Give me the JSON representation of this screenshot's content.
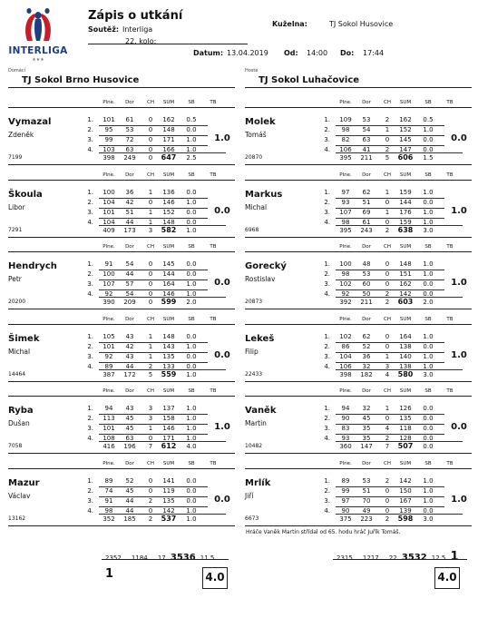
{
  "header": {
    "title": "Zápis o utkání",
    "soutez_label": "Soutěž:",
    "soutez_value": "Interliga",
    "kolo": "22. kolo:",
    "kuzelna_label": "Kuželna:",
    "kuzelna_value": "TJ Sokol Husovice",
    "datum_label": "Datum:",
    "datum_value": "13.04.2019",
    "od_label": "Od:",
    "od_value": "14:00",
    "do_label": "Do:",
    "do_value": "17:44",
    "logo_text": "INTERLIGA"
  },
  "home": {
    "label": "Domácí",
    "name": "TJ Sokol Brno Husovice"
  },
  "away": {
    "label": "Hosté",
    "name": "TJ Sokol Luhačovice"
  },
  "columns": [
    "Plne.",
    "Dor",
    "CH",
    "SUM",
    "SB",
    "TB"
  ],
  "home_players": [
    {
      "last": "Vymazal",
      "first": "Zdeněk",
      "id": "7199",
      "rows": [
        [
          "101",
          "61",
          "0",
          "162",
          "0.5"
        ],
        [
          "95",
          "53",
          "0",
          "148",
          "0.0"
        ],
        [
          "99",
          "72",
          "0",
          "171",
          "1.0"
        ],
        [
          "103",
          "63",
          "0",
          "166",
          "1.0"
        ]
      ],
      "total": [
        "398",
        "249",
        "0",
        "647",
        "2.5"
      ],
      "points": "1.0"
    },
    {
      "last": "Škoula",
      "first": "Libor",
      "id": "7291",
      "rows": [
        [
          "100",
          "36",
          "1",
          "136",
          "0.0"
        ],
        [
          "104",
          "42",
          "0",
          "146",
          "1.0"
        ],
        [
          "101",
          "51",
          "1",
          "152",
          "0.0"
        ],
        [
          "104",
          "44",
          "1",
          "148",
          "0.0"
        ]
      ],
      "total": [
        "409",
        "173",
        "3",
        "582",
        "1.0"
      ],
      "points": "0.0"
    },
    {
      "last": "Hendrych",
      "first": "Petr",
      "id": "20200",
      "rows": [
        [
          "91",
          "54",
          "0",
          "145",
          "0.0"
        ],
        [
          "100",
          "44",
          "0",
          "144",
          "0.0"
        ],
        [
          "107",
          "57",
          "0",
          "164",
          "1.0"
        ],
        [
          "92",
          "54",
          "0",
          "146",
          "1.0"
        ]
      ],
      "total": [
        "390",
        "209",
        "0",
        "599",
        "2.0"
      ],
      "points": "0.0"
    },
    {
      "last": "Šimek",
      "first": "Michal",
      "id": "14464",
      "rows": [
        [
          "105",
          "43",
          "1",
          "148",
          "0.0"
        ],
        [
          "101",
          "42",
          "1",
          "143",
          "1.0"
        ],
        [
          "92",
          "43",
          "1",
          "135",
          "0.0"
        ],
        [
          "89",
          "44",
          "2",
          "133",
          "0.0"
        ]
      ],
      "total": [
        "387",
        "172",
        "5",
        "559",
        "1.0"
      ],
      "points": "0.0"
    },
    {
      "last": "Ryba",
      "first": "Dušan",
      "id": "7058",
      "rows": [
        [
          "94",
          "43",
          "3",
          "137",
          "1.0"
        ],
        [
          "113",
          "45",
          "3",
          "158",
          "1.0"
        ],
        [
          "101",
          "45",
          "1",
          "146",
          "1.0"
        ],
        [
          "108",
          "63",
          "0",
          "171",
          "1.0"
        ]
      ],
      "total": [
        "416",
        "196",
        "7",
        "612",
        "4.0"
      ],
      "points": "1.0"
    },
    {
      "last": "Mazur",
      "first": "Václav",
      "id": "13162",
      "rows": [
        [
          "89",
          "52",
          "0",
          "141",
          "0.0"
        ],
        [
          "74",
          "45",
          "0",
          "119",
          "0.0"
        ],
        [
          "91",
          "44",
          "2",
          "135",
          "0.0"
        ],
        [
          "98",
          "44",
          "0",
          "142",
          "1.0"
        ]
      ],
      "total": [
        "352",
        "185",
        "2",
        "537",
        "1.0"
      ],
      "points": "0.0"
    }
  ],
  "away_players": [
    {
      "last": "Molek",
      "first": "Tomáš",
      "id": "20870",
      "rows": [
        [
          "109",
          "53",
          "2",
          "162",
          "0.5"
        ],
        [
          "98",
          "54",
          "1",
          "152",
          "1.0"
        ],
        [
          "82",
          "63",
          "0",
          "145",
          "0.0"
        ],
        [
          "106",
          "41",
          "2",
          "147",
          "0.0"
        ]
      ],
      "total": [
        "395",
        "211",
        "5",
        "606",
        "1.5"
      ],
      "points": "0.0"
    },
    {
      "last": "Markus",
      "first": "Michal",
      "id": "6968",
      "rows": [
        [
          "97",
          "62",
          "1",
          "159",
          "1.0"
        ],
        [
          "93",
          "51",
          "0",
          "144",
          "0.0"
        ],
        [
          "107",
          "69",
          "1",
          "176",
          "1.0"
        ],
        [
          "98",
          "61",
          "0",
          "159",
          "1.0"
        ]
      ],
      "total": [
        "395",
        "243",
        "2",
        "638",
        "3.0"
      ],
      "points": "1.0"
    },
    {
      "last": "Gorecký",
      "first": "Rostislav",
      "id": "20873",
      "rows": [
        [
          "100",
          "48",
          "0",
          "148",
          "1.0"
        ],
        [
          "98",
          "53",
          "0",
          "151",
          "1.0"
        ],
        [
          "102",
          "60",
          "0",
          "162",
          "0.0"
        ],
        [
          "92",
          "50",
          "2",
          "142",
          "0.0"
        ]
      ],
      "total": [
        "392",
        "211",
        "2",
        "603",
        "2.0"
      ],
      "points": "1.0"
    },
    {
      "last": "Lekeš",
      "first": "Filip",
      "id": "22433",
      "rows": [
        [
          "102",
          "62",
          "0",
          "164",
          "1.0"
        ],
        [
          "86",
          "52",
          "0",
          "138",
          "0.0"
        ],
        [
          "104",
          "36",
          "1",
          "140",
          "1.0"
        ],
        [
          "106",
          "32",
          "3",
          "138",
          "1.0"
        ]
      ],
      "total": [
        "398",
        "182",
        "4",
        "580",
        "3.0"
      ],
      "points": "1.0"
    },
    {
      "last": "Vaněk",
      "first": "Martin",
      "id": "10482",
      "rows": [
        [
          "94",
          "32",
          "1",
          "126",
          "0.0"
        ],
        [
          "90",
          "45",
          "0",
          "135",
          "0.0"
        ],
        [
          "83",
          "35",
          "4",
          "118",
          "0.0"
        ],
        [
          "93",
          "35",
          "2",
          "128",
          "0.0"
        ]
      ],
      "total": [
        "360",
        "147",
        "7",
        "507",
        "0.0"
      ],
      "points": "0.0"
    },
    {
      "last": "Mrlík",
      "first": "Jiří",
      "id": "6673",
      "rows": [
        [
          "89",
          "53",
          "2",
          "142",
          "1.0"
        ],
        [
          "99",
          "51",
          "0",
          "150",
          "1.0"
        ],
        [
          "97",
          "70",
          "0",
          "167",
          "1.0"
        ],
        [
          "90",
          "49",
          "0",
          "139",
          "0.0"
        ]
      ],
      "total": [
        "375",
        "223",
        "2",
        "598",
        "3.0"
      ],
      "points": "1.0"
    }
  ],
  "note": "Hráče Vaněk Martin střídal od 65. hodu hráč Juřík Tomáš.",
  "home_total": {
    "plne": "2352",
    "dor": "1184",
    "ch": "17",
    "sum": "3536",
    "sb": "11.5",
    "tb": "1",
    "final": "4.0"
  },
  "away_total": {
    "plne": "2315",
    "dor": "1217",
    "ch": "22",
    "sum": "3532",
    "sb": "12.5",
    "tb": "1",
    "final": "4.0"
  }
}
